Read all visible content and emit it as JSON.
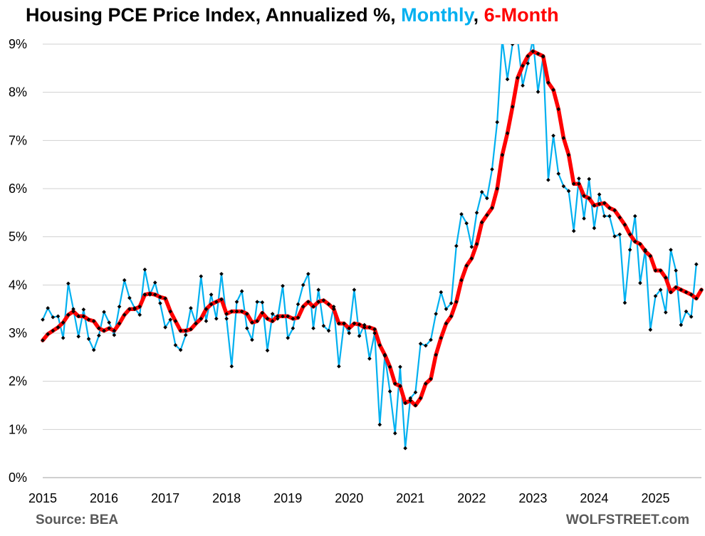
{
  "title": {
    "prefix": "Housing PCE Price Index, Annualized %, ",
    "monthly": "Monthly",
    "comma": ", ",
    "sixmonth": "6-Month"
  },
  "source": "Source: BEA",
  "brand": "WOLFSTREET.com",
  "chart_data": {
    "type": "line",
    "title": "Housing PCE Price Index, Annualized %, Monthly, 6-Month",
    "xlabel": "",
    "ylabel": "",
    "x_start": "2015-01",
    "xlim": [
      2015,
      2025.75
    ],
    "ylim": [
      0,
      9
    ],
    "y_ticks": [
      "0%",
      "1%",
      "2%",
      "3%",
      "4%",
      "5%",
      "6%",
      "7%",
      "8%",
      "9%"
    ],
    "x_ticks": [
      "2015",
      "2016",
      "2017",
      "2018",
      "2019",
      "2020",
      "2021",
      "2022",
      "2023",
      "2024",
      "2025"
    ],
    "grid": true,
    "series": [
      {
        "name": "Monthly",
        "color": "#00b0f0",
        "values": [
          3.28,
          3.52,
          3.33,
          3.35,
          2.9,
          4.03,
          3.5,
          2.93,
          3.49,
          2.88,
          2.65,
          2.95,
          3.44,
          3.22,
          2.96,
          3.55,
          4.1,
          3.73,
          3.52,
          3.38,
          4.32,
          3.8,
          4.05,
          3.62,
          3.12,
          3.28,
          2.75,
          2.65,
          2.96,
          3.52,
          3.2,
          4.18,
          3.25,
          3.8,
          3.3,
          4.23,
          3.3,
          2.31,
          3.65,
          3.87,
          3.1,
          2.86,
          3.65,
          3.64,
          2.64,
          3.4,
          3.3,
          3.98,
          2.9,
          3.1,
          3.6,
          4.0,
          4.23,
          3.1,
          3.9,
          3.15,
          3.05,
          3.55,
          2.31,
          3.2,
          3.0,
          3.9,
          2.94,
          3.17,
          2.47,
          3.0,
          1.1,
          2.53,
          1.79,
          0.92,
          2.3,
          0.61,
          1.65,
          1.77,
          2.78,
          2.74,
          2.86,
          3.4,
          3.85,
          3.5,
          3.62,
          4.81,
          5.47,
          5.28,
          4.79,
          5.5,
          5.93,
          5.8,
          6.4,
          7.38,
          9.1,
          8.27,
          9.0,
          9.1,
          8.14,
          8.6,
          9.1,
          8.01,
          8.74,
          6.18,
          7.1,
          6.31,
          6.05,
          5.95,
          5.12,
          6.21,
          5.38,
          6.2,
          5.18,
          5.88,
          5.43,
          5.43,
          5.01,
          5.05,
          3.63,
          4.73,
          5.43,
          4.04,
          4.73,
          3.07,
          3.77,
          3.9,
          3.43,
          4.73,
          4.3,
          3.17,
          3.45,
          3.34,
          4.43
        ]
      },
      {
        "name": "6-Month",
        "color": "#ff0000",
        "values": [
          2.85,
          2.98,
          3.05,
          3.12,
          3.22,
          3.38,
          3.45,
          3.35,
          3.35,
          3.28,
          3.25,
          3.1,
          3.05,
          3.1,
          3.05,
          3.2,
          3.38,
          3.5,
          3.5,
          3.55,
          3.8,
          3.82,
          3.8,
          3.75,
          3.72,
          3.45,
          3.25,
          3.05,
          3.05,
          3.08,
          3.2,
          3.3,
          3.5,
          3.6,
          3.65,
          3.7,
          3.4,
          3.45,
          3.45,
          3.45,
          3.4,
          3.22,
          3.25,
          3.42,
          3.3,
          3.25,
          3.35,
          3.35,
          3.35,
          3.3,
          3.32,
          3.55,
          3.65,
          3.55,
          3.65,
          3.68,
          3.6,
          3.5,
          3.2,
          3.2,
          3.1,
          3.2,
          3.18,
          3.12,
          3.12,
          3.08,
          2.75,
          2.55,
          2.3,
          1.95,
          1.9,
          1.55,
          1.6,
          1.5,
          1.65,
          1.95,
          2.05,
          2.55,
          2.9,
          3.2,
          3.35,
          3.65,
          4.1,
          4.4,
          4.55,
          4.85,
          5.3,
          5.45,
          5.6,
          6.0,
          6.7,
          7.15,
          7.7,
          8.3,
          8.55,
          8.75,
          8.85,
          8.8,
          8.75,
          8.2,
          8.05,
          7.65,
          7.05,
          6.7,
          6.1,
          6.1,
          5.85,
          5.8,
          5.65,
          5.68,
          5.7,
          5.6,
          5.55,
          5.4,
          5.25,
          5.05,
          4.9,
          4.85,
          4.7,
          4.6,
          4.3,
          4.3,
          4.15,
          3.85,
          3.95,
          3.9,
          3.85,
          3.8,
          3.72,
          3.9
        ]
      }
    ]
  }
}
